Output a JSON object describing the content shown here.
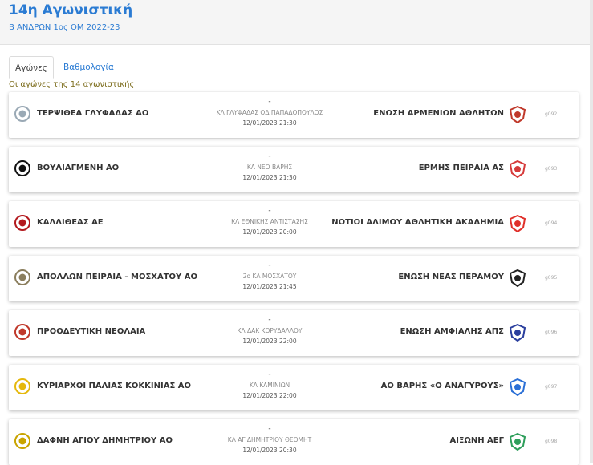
{
  "header": {
    "title": "14η Αγωνιστική",
    "subtitle": "Β ΑΝΔΡΩΝ 1ος ΟΜ 2022-23"
  },
  "tabs": [
    {
      "label": "Αγώνες",
      "active": true
    },
    {
      "label": "Βαθμολογία",
      "active": false
    }
  ],
  "section_label": "Οι αγώνες της 14 αγωνιστικής",
  "matches": [
    {
      "home": "ΤΕΡΨΙΘΕΑ ΓΛΥΦΑΔΑΣ ΑΟ",
      "score": "-",
      "venue": "ΚΛ ΓΛΥΦΑΔΑΣ ΟΔ ΠΑΠΑΔΟΠΟΥΛΟΣ",
      "datetime": "12/01/2023 21:30",
      "away": "ΕΝΩΣΗ ΑΡΜΕΝΙΩΝ ΑΘΛΗΤΩΝ",
      "code": "g092",
      "home_icon": "team-crest-icon",
      "away_icon": "team-crest-icon",
      "home_color": "#9aa9b5",
      "away_color": "#c0392b"
    },
    {
      "home": "ΒΟΥΛΙΑΓΜΕΝΗ ΑΟ",
      "score": "-",
      "venue": "ΚΛ ΝΕΟ ΒΑΡΗΣ",
      "datetime": "12/01/2023 21:30",
      "away": "ΕΡΜΗΣ ΠΕΙΡΑΙΑ ΑΣ",
      "code": "g093",
      "home_icon": "team-crest-icon",
      "away_icon": "team-crest-icon",
      "home_color": "#111111",
      "away_color": "#d63a3a"
    },
    {
      "home": "ΚΑΛΛΙΘΕΑΣ ΑΕ",
      "score": "-",
      "venue": "ΚΛ ΕΘΝΙΚΗΣ ΑΝΤΙΣΤΑΣΗΣ",
      "datetime": "12/01/2023 20:00",
      "away": "ΝΟΤΙΟΙ ΑΛΙΜΟΥ ΑΘΛΗΤΙΚΗ ΑΚΑΔΗΜΙΑ",
      "code": "g094",
      "home_icon": "team-crest-icon",
      "away_icon": "team-crest-icon",
      "home_color": "#b3191e",
      "away_color": "#e0302a"
    },
    {
      "home": "ΑΠΟΛΛΩΝ ΠΕΙΡΑΙΑ - ΜΟΣΧΑΤΟΥ ΑΟ",
      "score": "-",
      "venue": "2ο ΚΛ ΜΟΣΧΑΤΟΥ",
      "datetime": "12/01/2023 21:45",
      "away": "ΕΝΩΣΗ ΝΕΑΣ ΠΕΡΑΜΟΥ",
      "code": "g095",
      "home_icon": "team-crest-icon",
      "away_icon": "team-crest-icon",
      "home_color": "#8a7d5c",
      "away_color": "#222222"
    },
    {
      "home": "ΠΡΟΟΔΕΥΤΙΚΗ ΝΕΟΛΑΙΑ",
      "score": "-",
      "venue": "ΚΛ ΔΑΚ ΚΟΡΥΔΑΛΛΟΥ",
      "datetime": "12/01/2023 22:00",
      "away": "ΕΝΩΣΗ ΑΜΦΙΑΛΗΣ ΑΠΣ",
      "code": "g096",
      "home_icon": "team-crest-icon",
      "away_icon": "team-crest-icon",
      "home_color": "#c0392b",
      "away_color": "#2b3f9e"
    },
    {
      "home": "ΚΥΡΙΑΡΧΟΙ ΠΑΛΙΑΣ ΚΟΚΚΙΝΙΑΣ ΑΟ",
      "score": "-",
      "venue": "ΚΛ ΚΑΜΙΝΙΩΝ",
      "datetime": "12/01/2023 22:00",
      "away": "ΑΟ ΒΑΡΗΣ «Ο ΑΝΑΓΥΡΟΥΣ»",
      "code": "g097",
      "home_icon": "team-crest-icon",
      "away_icon": "team-crest-icon",
      "home_color": "#e5b80b",
      "away_color": "#2a6fd6"
    },
    {
      "home": "ΔΑΦΝΗ ΑΓΙΟΥ ΔΗΜΗΤΡΙΟΥ ΑΟ",
      "score": "-",
      "venue": "ΚΛ ΑΓ ΔΗΜΗΤΡΙΟΥ ΘΕΟΜΗΤ",
      "datetime": "12/01/2023 20:30",
      "away": "ΑΙΞΩΝΗ ΑΕΓ",
      "code": "g098",
      "home_icon": "team-crest-icon",
      "away_icon": "team-crest-icon",
      "home_color": "#c9a400",
      "away_color": "#2e9e5b"
    }
  ]
}
